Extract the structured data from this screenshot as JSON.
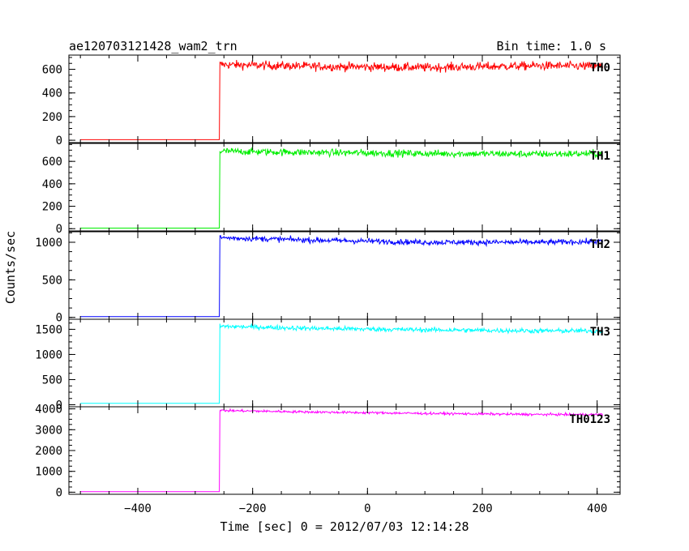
{
  "chart_data": {
    "type": "line",
    "title": "ae120703121428_wam2_trn",
    "subtitle": "Bin time: 1.0 s",
    "xlabel": "Time [sec] 0 = 2012/07/03 12:14:28",
    "ylabel": "Counts/sec",
    "xlim": [
      -520,
      440
    ],
    "xticks": [
      -400,
      -200,
      0,
      200,
      400
    ],
    "xtick_labels": [
      "−400",
      "−200",
      "0",
      "200",
      "400"
    ],
    "bin_time_s": 1.0,
    "grid": false,
    "panels": [
      {
        "name": "TH0",
        "color": "#ff0000",
        "ylim": [
          -20,
          720
        ],
        "yticks": [
          0,
          200,
          400,
          600
        ],
        "yticklabels": [
          "0",
          "200",
          "400",
          "600"
        ],
        "x_start": -500,
        "x_onset": -258,
        "x_end": 410,
        "pre_level": 5,
        "level_points": [
          [
            -256,
            640
          ],
          [
            -100,
            625
          ],
          [
            100,
            615
          ],
          [
            300,
            630
          ],
          [
            410,
            625
          ]
        ],
        "noise": 35
      },
      {
        "name": "TH1",
        "color": "#00ee00",
        "ylim": [
          -20,
          760
        ],
        "yticks": [
          0,
          200,
          400,
          600
        ],
        "yticklabels": [
          "0",
          "200",
          "400",
          "600"
        ],
        "x_start": -500,
        "x_onset": -258,
        "x_end": 410,
        "pre_level": 5,
        "level_points": [
          [
            -256,
            690
          ],
          [
            -100,
            680
          ],
          [
            100,
            670
          ],
          [
            300,
            665
          ],
          [
            410,
            670
          ]
        ],
        "noise": 30
      },
      {
        "name": "TH2",
        "color": "#0000ff",
        "ylim": [
          -25,
          1140
        ],
        "yticks": [
          0,
          500,
          1000
        ],
        "yticklabels": [
          "0",
          "500",
          "1000"
        ],
        "x_start": -500,
        "x_onset": -258,
        "x_end": 410,
        "pre_level": 10,
        "level_points": [
          [
            -256,
            1060
          ],
          [
            -100,
            1030
          ],
          [
            100,
            1000
          ],
          [
            300,
            1000
          ],
          [
            410,
            1010
          ]
        ],
        "noise": 35
      },
      {
        "name": "TH3",
        "color": "#00ffff",
        "ylim": [
          -40,
          1700
        ],
        "yticks": [
          0,
          500,
          1000,
          1500
        ],
        "yticklabels": [
          "0",
          "500",
          "1000",
          "1500"
        ],
        "x_start": -500,
        "x_onset": -258,
        "x_end": 410,
        "pre_level": 30,
        "level_points": [
          [
            -256,
            1560
          ],
          [
            -100,
            1520
          ],
          [
            100,
            1490
          ],
          [
            300,
            1470
          ],
          [
            410,
            1470
          ]
        ],
        "noise": 45
      },
      {
        "name": "TH0123",
        "color": "#ff00ff",
        "ylim": [
          -100,
          4100
        ],
        "yticks": [
          0,
          1000,
          2000,
          3000,
          4000
        ],
        "yticklabels": [
          "0",
          "1000",
          "2000",
          "3000",
          "4000"
        ],
        "x_start": -500,
        "x_onset": -258,
        "x_end": 410,
        "pre_level": 30,
        "level_points": [
          [
            -256,
            3920
          ],
          [
            -100,
            3850
          ],
          [
            100,
            3780
          ],
          [
            300,
            3730
          ],
          [
            410,
            3730
          ]
        ],
        "noise": 55
      }
    ]
  }
}
